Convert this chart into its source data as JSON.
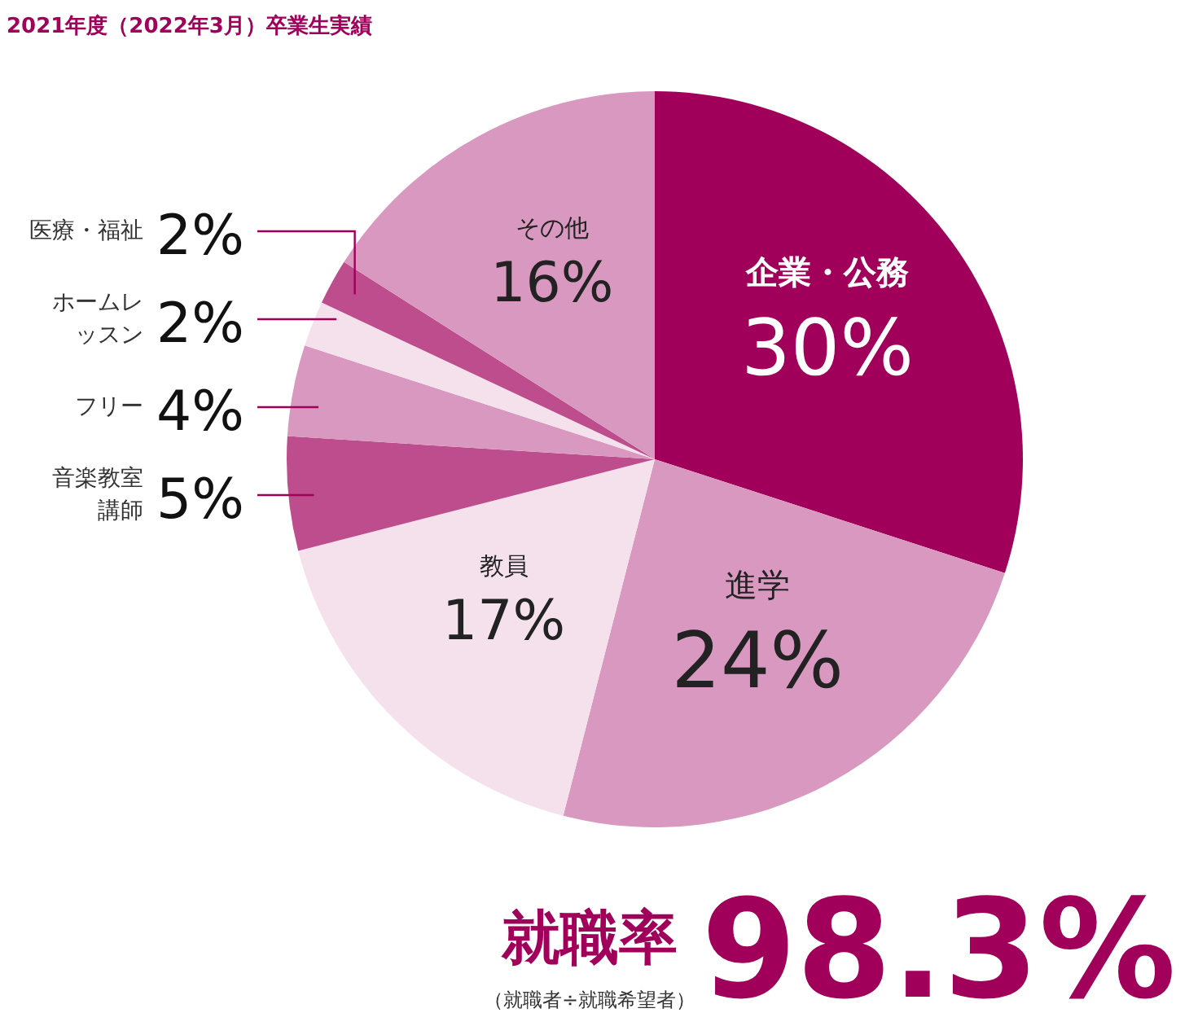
{
  "chart_data": {
    "type": "pie",
    "title": "2021年度（2022年3月）卒業生実績",
    "categories": [
      "企業・公務",
      "進学",
      "教員",
      "音楽教室講師",
      "フリー",
      "ホームレッスン",
      "医療・福祉",
      "その他"
    ],
    "values": [
      30,
      24,
      17,
      5,
      4,
      2,
      2,
      16
    ],
    "value_labels": [
      "30%",
      "24%",
      "17%",
      "5%",
      "4%",
      "2%",
      "2%",
      "16%"
    ],
    "colors": [
      "#a0005a",
      "#d898bf",
      "#f5e1ec",
      "#bd4d8c",
      "#d898bf",
      "#f5e1ec",
      "#bd4d8c",
      "#d898bf"
    ],
    "annotations": [
      "就職率",
      "98.3%",
      "（就職者÷就職希望者）"
    ]
  }
}
